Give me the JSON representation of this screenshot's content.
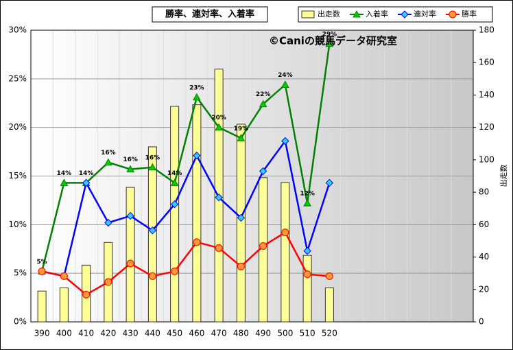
{
  "chart_data": {
    "type": "bar-line",
    "title": "勝率、連対率、入着率",
    "annotation": "©Caniの競馬データ研究室",
    "y2label": "出走数",
    "categories": [
      "390",
      "400",
      "410",
      "420",
      "430",
      "440",
      "450",
      "460",
      "470",
      "480",
      "490",
      "500",
      "510",
      "520",
      null,
      null,
      null,
      null,
      null,
      null
    ],
    "ylim": [
      0,
      30
    ],
    "yticks": [
      {
        "value": 0,
        "label": "0%"
      },
      {
        "value": 5,
        "label": "5%"
      },
      {
        "value": 10,
        "label": "10%"
      },
      {
        "value": 15,
        "label": "15%"
      },
      {
        "value": 20,
        "label": "20%"
      },
      {
        "value": 25,
        "label": "25%"
      },
      {
        "value": 30,
        "label": "30%"
      }
    ],
    "y2lim": [
      0,
      180
    ],
    "y2ticks": [
      0,
      20,
      40,
      60,
      80,
      100,
      120,
      140,
      160,
      180
    ],
    "grid": true,
    "legend": "top-right",
    "series": [
      {
        "name": "出走数",
        "type": "bar",
        "axis": "y2",
        "color": "#ffff99",
        "values": [
          19,
          21,
          35,
          49,
          83,
          108,
          133,
          134,
          156,
          122,
          89,
          86,
          41,
          21,
          null,
          null,
          null,
          null,
          null,
          null
        ]
      },
      {
        "name": "入着率",
        "type": "line",
        "marker": "triangle",
        "color": "#008000",
        "marker_color": "#00cc00",
        "values": [
          5.2,
          14.3,
          14.3,
          16.4,
          15.7,
          15.9,
          14.3,
          23.1,
          20.0,
          18.9,
          22.4,
          24.4,
          12.2,
          28.6,
          null,
          null,
          null,
          null,
          null,
          null
        ],
        "value_labels": [
          "5%",
          "14%",
          "14%",
          "16%",
          "16%",
          "16%",
          "14%",
          "23%",
          "20%",
          "19%",
          "22%",
          "24%",
          "12%",
          "29%",
          null,
          null,
          null,
          null,
          null,
          null
        ]
      },
      {
        "name": "連対率",
        "type": "line",
        "marker": "diamond",
        "color": "#0000ff",
        "marker_color": "#33ccff",
        "values": [
          5.2,
          4.7,
          14.3,
          10.2,
          10.9,
          9.4,
          12.1,
          17.1,
          12.8,
          10.7,
          15.5,
          18.6,
          7.3,
          14.3,
          null,
          null,
          null,
          null,
          null,
          null
        ]
      },
      {
        "name": "勝率",
        "type": "line",
        "marker": "circle",
        "color": "#ff0000",
        "marker_color": "#ff9933",
        "values": [
          5.2,
          4.7,
          2.8,
          4.1,
          6.0,
          4.7,
          5.2,
          8.2,
          7.6,
          5.7,
          7.8,
          9.2,
          4.9,
          4.7,
          null,
          null,
          null,
          null,
          null,
          null
        ]
      }
    ]
  }
}
